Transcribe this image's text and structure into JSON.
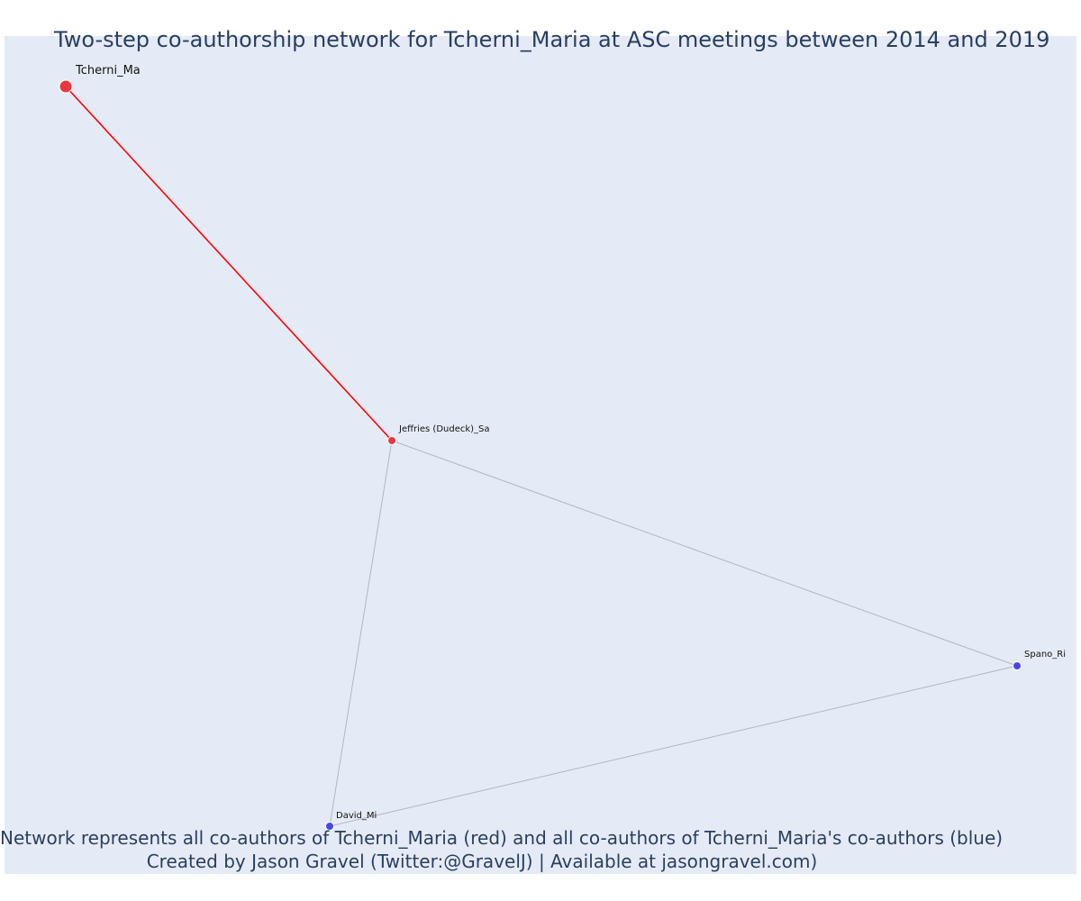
{
  "title": "Two-step co-authorship network for Tcherni_Maria at ASC meetings between 2014 and 2019",
  "annotation": {
    "line1": "Network represents all co-authors of Tcherni_Maria (red) and all co-authors of Tcherni_Maria's co-authors (blue)",
    "line2": "Created by Jason Gravel (Twitter:@GravelJ) | Available at jasongravel.com)"
  },
  "colors": {
    "focal_edge": "#ff0000",
    "other_edge": "#b4b4c4",
    "red_node": "#e8393f",
    "blue_node": "#4747e8",
    "background": "#e5ebf6",
    "title": "#2a3f5f"
  },
  "nodes": [
    {
      "id": "tcherni",
      "label": "Tcherni_Ma",
      "group": "focal",
      "color": "red"
    },
    {
      "id": "jeffries",
      "label": "Jeffries (Dudeck)_Sa",
      "group": "coauthor",
      "color": "red"
    },
    {
      "id": "spano",
      "label": "Spano_Ri",
      "group": "second-step",
      "color": "blue"
    },
    {
      "id": "david",
      "label": "David_Mi",
      "group": "second-step",
      "color": "blue"
    }
  ],
  "edges": [
    {
      "source": "tcherni",
      "target": "jeffries",
      "style": "focal"
    },
    {
      "source": "jeffries",
      "target": "spano",
      "style": "other"
    },
    {
      "source": "jeffries",
      "target": "david",
      "style": "other"
    },
    {
      "source": "spano",
      "target": "david",
      "style": "other"
    }
  ]
}
